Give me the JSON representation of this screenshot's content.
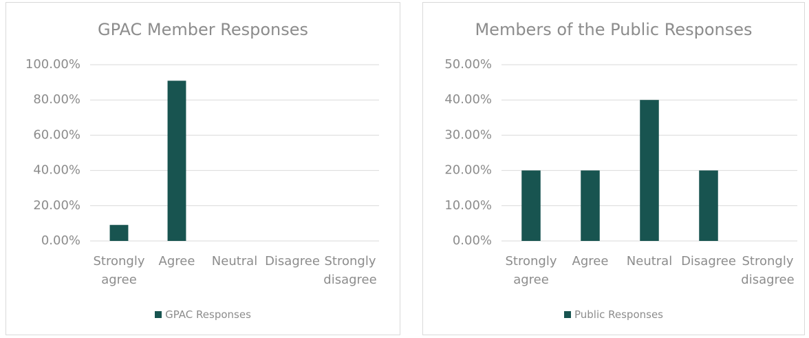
{
  "chart_data": [
    {
      "type": "bar",
      "title": "GPAC Member Responses",
      "categories": [
        "Strongly agree",
        "Agree",
        "Neutral",
        "Disagree",
        "Strongly disagree"
      ],
      "series": [
        {
          "name": "GPAC Responses",
          "color": "#185450",
          "values": [
            9.09,
            90.91,
            0,
            0,
            0
          ]
        }
      ],
      "ylim": [
        0,
        100
      ],
      "yticks": [
        {
          "value": 0,
          "label": "0.00%"
        },
        {
          "value": 20,
          "label": "20.00%"
        },
        {
          "value": 40,
          "label": "40.00%"
        },
        {
          "value": 60,
          "label": "60.00%"
        },
        {
          "value": 80,
          "label": "80.00%"
        },
        {
          "value": 100,
          "label": "100.00%"
        }
      ],
      "grid": true,
      "legend": "bottom"
    },
    {
      "type": "bar",
      "title": "Members of the Public Responses",
      "categories": [
        "Strongly agree",
        "Agree",
        "Neutral",
        "Disagree",
        "Strongly disagree"
      ],
      "series": [
        {
          "name": "Public Responses",
          "color": "#185450",
          "values": [
            20,
            20,
            40,
            20,
            0
          ]
        }
      ],
      "ylim": [
        0,
        50
      ],
      "yticks": [
        {
          "value": 0,
          "label": "0.00%"
        },
        {
          "value": 10,
          "label": "10.00%"
        },
        {
          "value": 20,
          "label": "20.00%"
        },
        {
          "value": 30,
          "label": "30.00%"
        },
        {
          "value": 40,
          "label": "40.00%"
        },
        {
          "value": 50,
          "label": "50.00%"
        }
      ],
      "grid": true,
      "legend": "bottom"
    }
  ]
}
